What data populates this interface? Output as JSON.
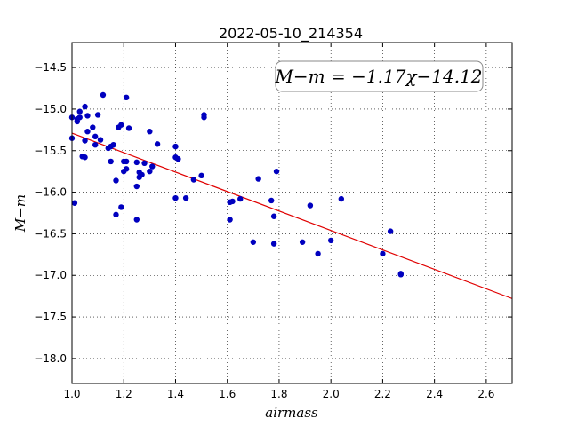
{
  "chart_data": {
    "type": "scatter",
    "title": "2022-05-10_214354",
    "xlabel": "airmass",
    "ylabel": "M−m",
    "xlim": [
      1.0,
      2.7
    ],
    "ylim": [
      -18.3,
      -14.2
    ],
    "xticks": [
      "1.0",
      "1.2",
      "1.4",
      "1.6",
      "1.8",
      "2.0",
      "2.2",
      "2.4",
      "2.6"
    ],
    "yticks": [
      "−14.5",
      "−15.0",
      "−15.5",
      "−16.0",
      "−16.5",
      "−17.0",
      "−17.5",
      "−18.0"
    ],
    "grid": true,
    "annotation": "M−m = −1.17χ−14.12",
    "colors": {
      "points": "#0000bf",
      "fit": "#e00000"
    },
    "fit": {
      "slope": -1.17,
      "intercept": -14.12
    },
    "points": [
      [
        1.0,
        -15.1
      ],
      [
        1.0,
        -15.35
      ],
      [
        1.01,
        -16.13
      ],
      [
        1.02,
        -15.15
      ],
      [
        1.02,
        -15.12
      ],
      [
        1.03,
        -15.03
      ],
      [
        1.03,
        -15.1
      ],
      [
        1.04,
        -15.57
      ],
      [
        1.05,
        -14.97
      ],
      [
        1.05,
        -15.38
      ],
      [
        1.05,
        -15.58
      ],
      [
        1.06,
        -15.08
      ],
      [
        1.06,
        -15.27
      ],
      [
        1.08,
        -15.22
      ],
      [
        1.09,
        -15.33
      ],
      [
        1.09,
        -15.43
      ],
      [
        1.1,
        -15.07
      ],
      [
        1.11,
        -15.37
      ],
      [
        1.12,
        -14.83
      ],
      [
        1.14,
        -15.47
      ],
      [
        1.15,
        -15.45
      ],
      [
        1.15,
        -15.63
      ],
      [
        1.16,
        -15.43
      ],
      [
        1.17,
        -15.86
      ],
      [
        1.17,
        -16.27
      ],
      [
        1.18,
        -15.22
      ],
      [
        1.19,
        -15.19
      ],
      [
        1.19,
        -16.18
      ],
      [
        1.2,
        -15.63
      ],
      [
        1.2,
        -15.75
      ],
      [
        1.21,
        -15.63
      ],
      [
        1.21,
        -15.72
      ],
      [
        1.21,
        -14.86
      ],
      [
        1.22,
        -15.23
      ],
      [
        1.25,
        -15.93
      ],
      [
        1.25,
        -16.33
      ],
      [
        1.25,
        -15.64
      ],
      [
        1.26,
        -15.76
      ],
      [
        1.26,
        -15.82
      ],
      [
        1.27,
        -15.79
      ],
      [
        1.28,
        -15.65
      ],
      [
        1.3,
        -15.27
      ],
      [
        1.3,
        -15.75
      ],
      [
        1.31,
        -15.69
      ],
      [
        1.33,
        -15.42
      ],
      [
        1.4,
        -15.45
      ],
      [
        1.4,
        -16.07
      ],
      [
        1.4,
        -15.58
      ],
      [
        1.41,
        -15.6
      ],
      [
        1.44,
        -16.07
      ],
      [
        1.47,
        -15.85
      ],
      [
        1.5,
        -15.8
      ],
      [
        1.51,
        -15.07
      ],
      [
        1.51,
        -15.1
      ],
      [
        1.61,
        -16.33
      ],
      [
        1.61,
        -16.12
      ],
      [
        1.62,
        -16.11
      ],
      [
        1.65,
        -16.08
      ],
      [
        1.7,
        -16.6
      ],
      [
        1.72,
        -15.84
      ],
      [
        1.77,
        -16.1
      ],
      [
        1.78,
        -16.29
      ],
      [
        1.78,
        -16.62
      ],
      [
        1.79,
        -15.75
      ],
      [
        1.89,
        -16.6
      ],
      [
        1.92,
        -16.16
      ],
      [
        1.95,
        -16.74
      ],
      [
        2.0,
        -16.58
      ],
      [
        2.04,
        -16.08
      ],
      [
        2.2,
        -16.74
      ],
      [
        2.23,
        -16.47
      ],
      [
        2.27,
        -16.98
      ],
      [
        2.27,
        -16.99
      ]
    ]
  }
}
